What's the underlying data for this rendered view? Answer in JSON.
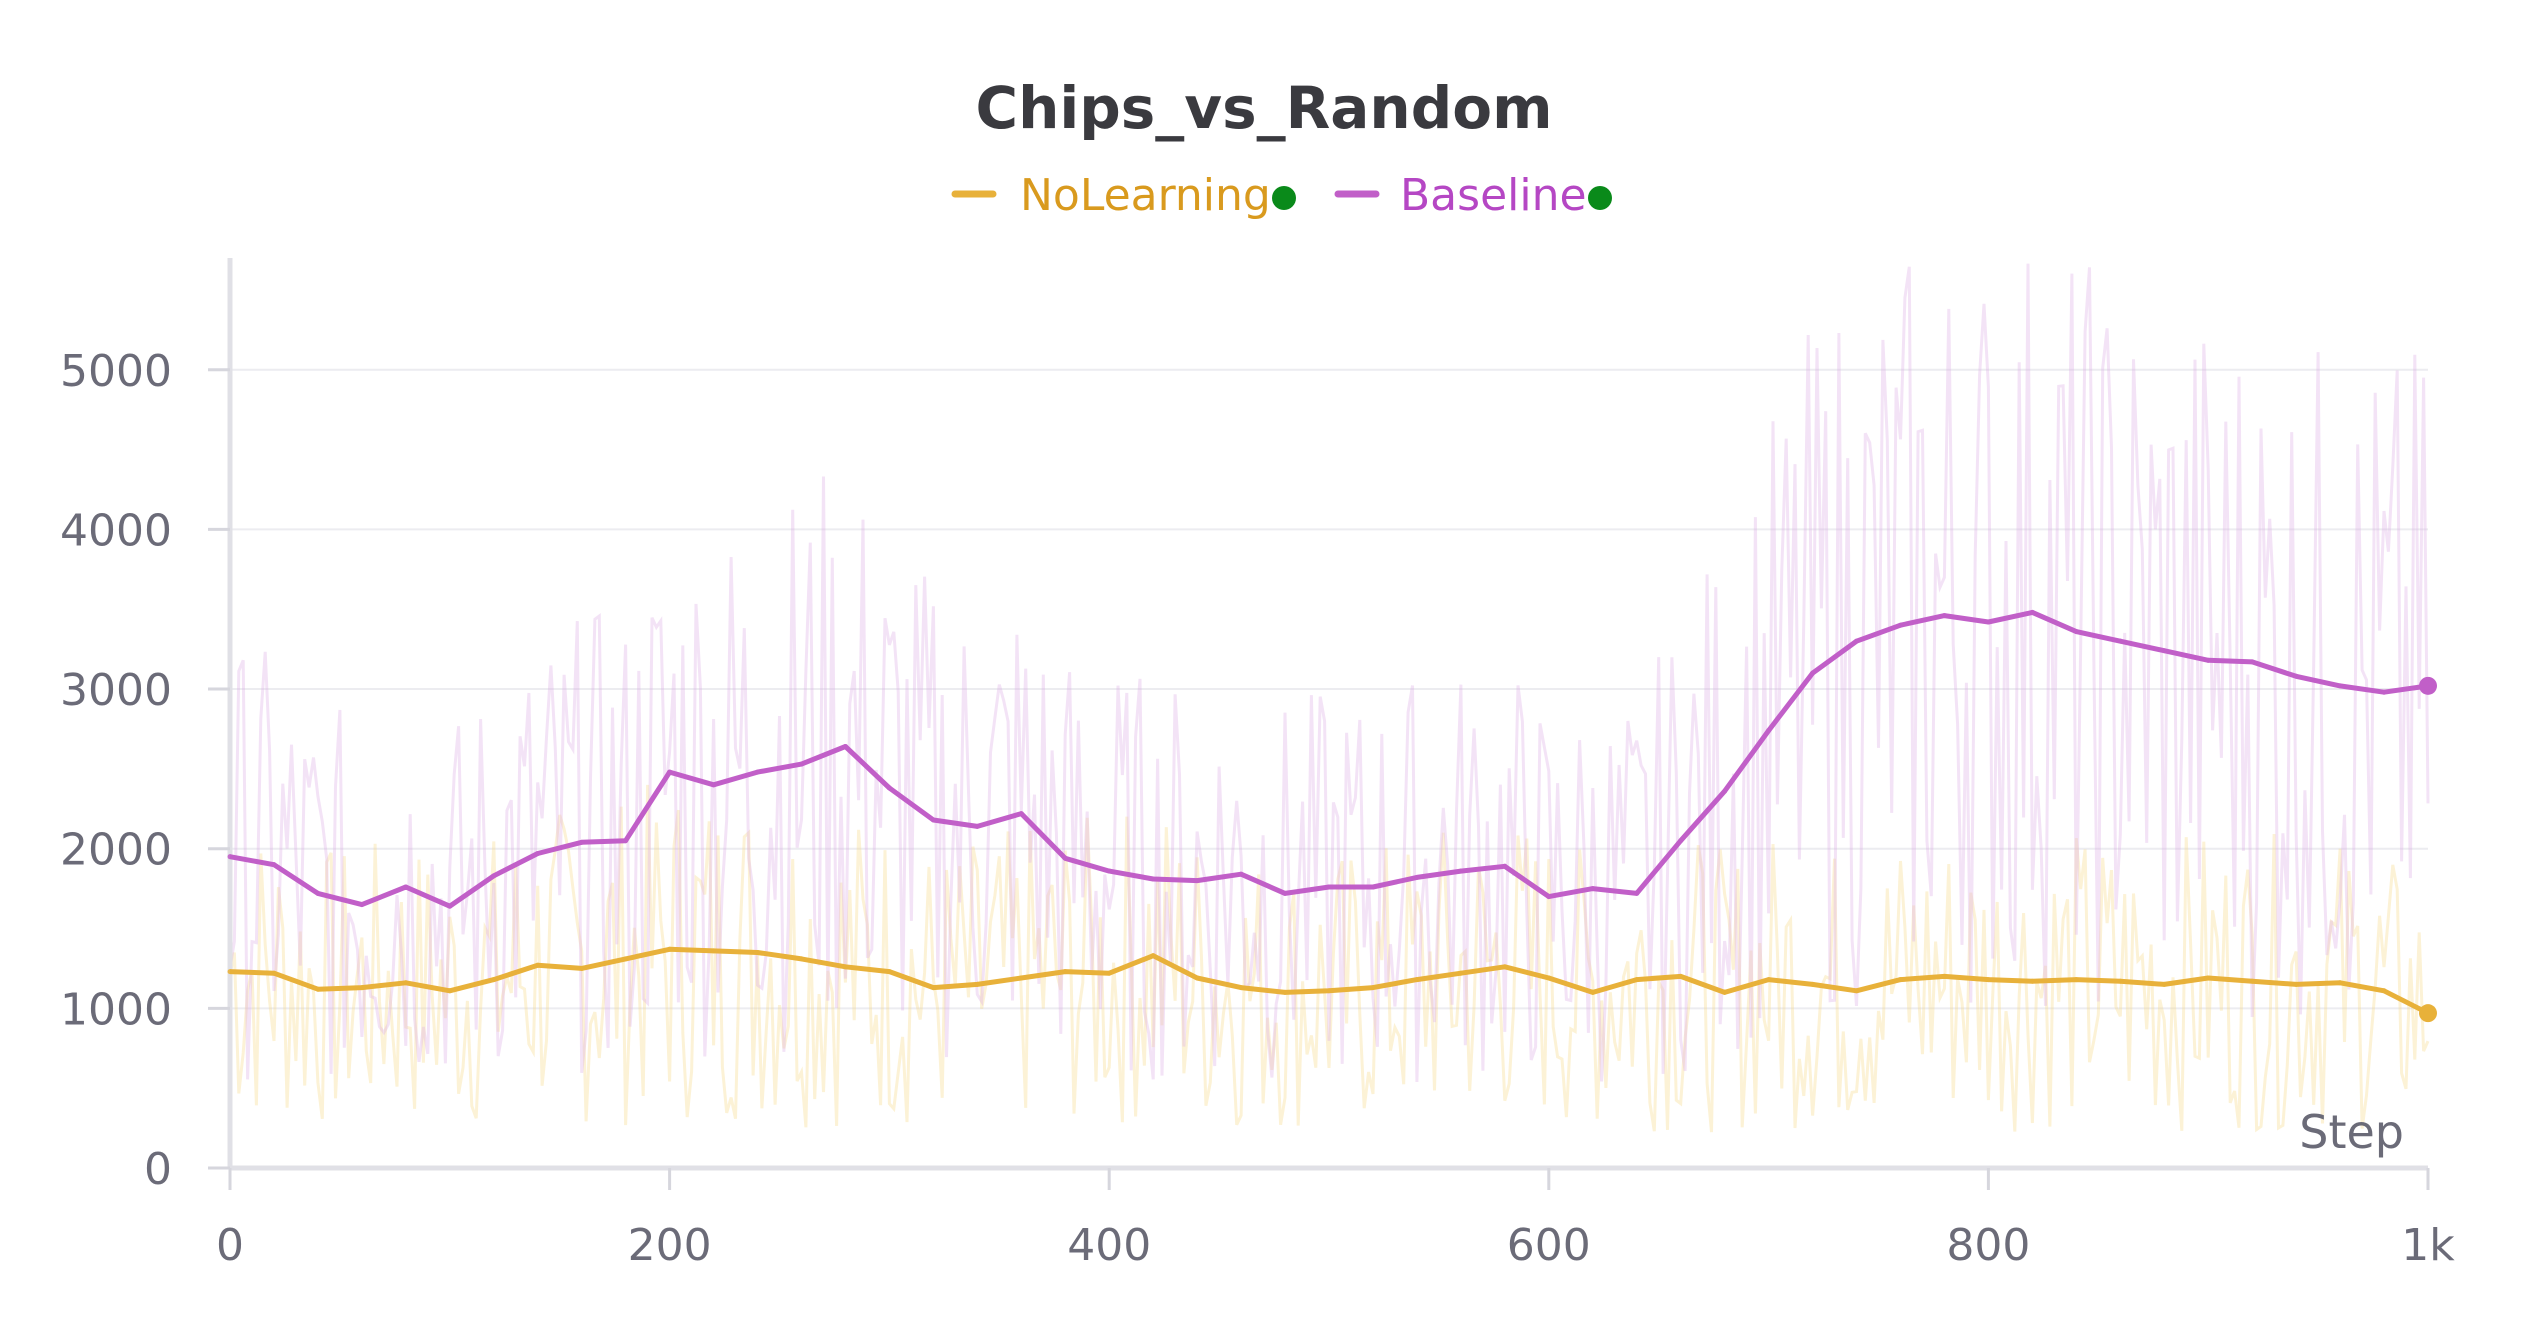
{
  "chart_data": {
    "type": "line",
    "title": "Chips_vs_Random",
    "xlabel": "Step",
    "ylabel": "",
    "xlim": [
      0,
      1000
    ],
    "ylim": [
      0,
      5700
    ],
    "x_ticks": [
      0,
      200,
      400,
      600,
      800,
      1000
    ],
    "x_tick_labels": [
      "0",
      "200",
      "400",
      "600",
      "800",
      "1k"
    ],
    "y_ticks": [
      0,
      1000,
      2000,
      3000,
      4000,
      5000
    ],
    "y_tick_labels": [
      "0",
      "1000",
      "2000",
      "3000",
      "4000",
      "5000"
    ],
    "grid": true,
    "legend_position": "top-center",
    "series": [
      {
        "name": "NoLearning",
        "color": "#e8b13a",
        "status_color": "#0a8a1a",
        "x": [
          0,
          20,
          40,
          60,
          80,
          100,
          120,
          140,
          160,
          180,
          200,
          220,
          240,
          260,
          280,
          300,
          320,
          340,
          360,
          380,
          400,
          420,
          440,
          460,
          480,
          500,
          520,
          540,
          560,
          580,
          600,
          620,
          640,
          660,
          680,
          700,
          720,
          740,
          760,
          780,
          800,
          820,
          840,
          860,
          880,
          900,
          920,
          940,
          960,
          980,
          1000
        ],
        "values": [
          1230,
          1220,
          1120,
          1130,
          1160,
          1110,
          1180,
          1270,
          1250,
          1310,
          1370,
          1360,
          1350,
          1310,
          1260,
          1230,
          1130,
          1150,
          1190,
          1230,
          1220,
          1330,
          1190,
          1130,
          1100,
          1110,
          1130,
          1180,
          1220,
          1260,
          1190,
          1100,
          1180,
          1200,
          1100,
          1180,
          1150,
          1110,
          1180,
          1200,
          1180,
          1170,
          1180,
          1170,
          1150,
          1190,
          1170,
          1150,
          1160,
          1110,
          970
        ]
      },
      {
        "name": "Baseline",
        "color": "#c15fc8",
        "status_color": "#0a8a1a",
        "x": [
          0,
          20,
          40,
          60,
          80,
          100,
          120,
          140,
          160,
          180,
          200,
          220,
          240,
          260,
          280,
          300,
          320,
          340,
          360,
          380,
          400,
          420,
          440,
          460,
          480,
          500,
          520,
          540,
          560,
          580,
          600,
          620,
          640,
          660,
          680,
          700,
          720,
          740,
          760,
          780,
          800,
          820,
          840,
          860,
          880,
          900,
          920,
          940,
          960,
          980,
          1000
        ],
        "values": [
          1950,
          1900,
          1720,
          1650,
          1760,
          1640,
          1830,
          1970,
          2040,
          2050,
          2480,
          2400,
          2480,
          2530,
          2640,
          2380,
          2180,
          2140,
          2220,
          1940,
          1860,
          1810,
          1800,
          1840,
          1720,
          1760,
          1760,
          1820,
          1860,
          1890,
          1700,
          1750,
          1720,
          2050,
          2360,
          2740,
          3100,
          3300,
          3400,
          3460,
          3420,
          3480,
          3360,
          3300,
          3240,
          3180,
          3170,
          3080,
          3020,
          2980,
          3020
        ]
      }
    ]
  }
}
